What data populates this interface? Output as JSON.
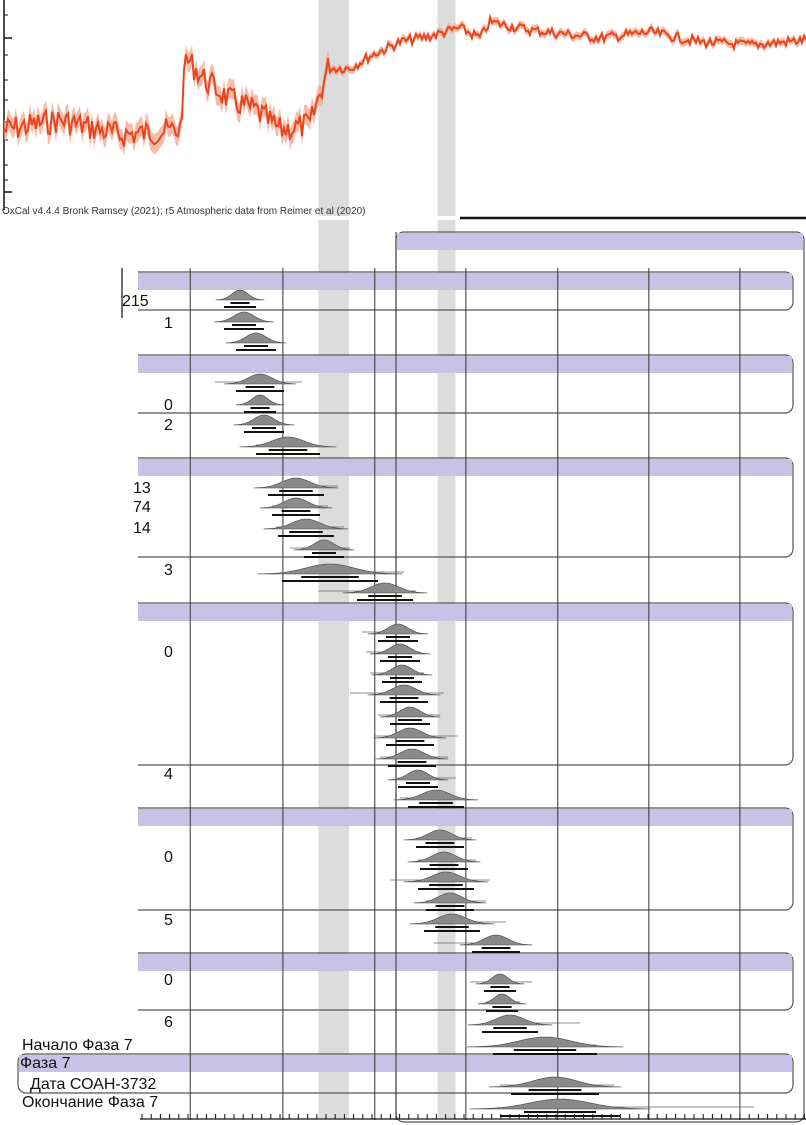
{
  "chart_data": {
    "type": "area",
    "title": "",
    "caption": "OxCal v4.4.4 Bronk Ramsey (2021); r5 Atmospheric data from Reimer et al (2020)",
    "xlabel": "",
    "ylabel": "",
    "grid": true,
    "legend": "none",
    "colors": {
      "curve": "#e8451f",
      "curve_faint": "#f2a083",
      "phase_band": "#c8c2e6",
      "phase_border": "#555555",
      "highlight": "#d6d6d6",
      "distribution": "#8a8a8a"
    },
    "axis": {
      "x_range": [
        0,
        100
      ],
      "grid_x": [
        23.6,
        35.1,
        46.5,
        57.8,
        69.2,
        80.5,
        91.8
      ]
    },
    "highlight_bands": [
      {
        "from": 39.5,
        "to": 43.3
      },
      {
        "from": 54.3,
        "to": 56.5
      }
    ],
    "calibration_curve": {
      "name": "",
      "note": "atmospheric calibration curve, relative vertical values 0-100"
    },
    "phase_labels": [
      {
        "text": "Фаза 7"
      }
    ],
    "row_labels": [
      {
        "text": "215"
      },
      {
        "text": "1"
      },
      {
        "text": "0"
      },
      {
        "text": "2"
      },
      {
        "text": "13"
      },
      {
        "text": "74"
      },
      {
        "text": "14"
      },
      {
        "text": "3"
      },
      {
        "text": "0"
      },
      {
        "text": "4"
      },
      {
        "text": "0"
      },
      {
        "text": "5"
      },
      {
        "text": "0"
      },
      {
        "text": "6"
      },
      {
        "text": "Начало Фаза 7"
      },
      {
        "text": "Дата СОАН-3732"
      },
      {
        "text": "Окончание Фаза 7"
      }
    ]
  }
}
